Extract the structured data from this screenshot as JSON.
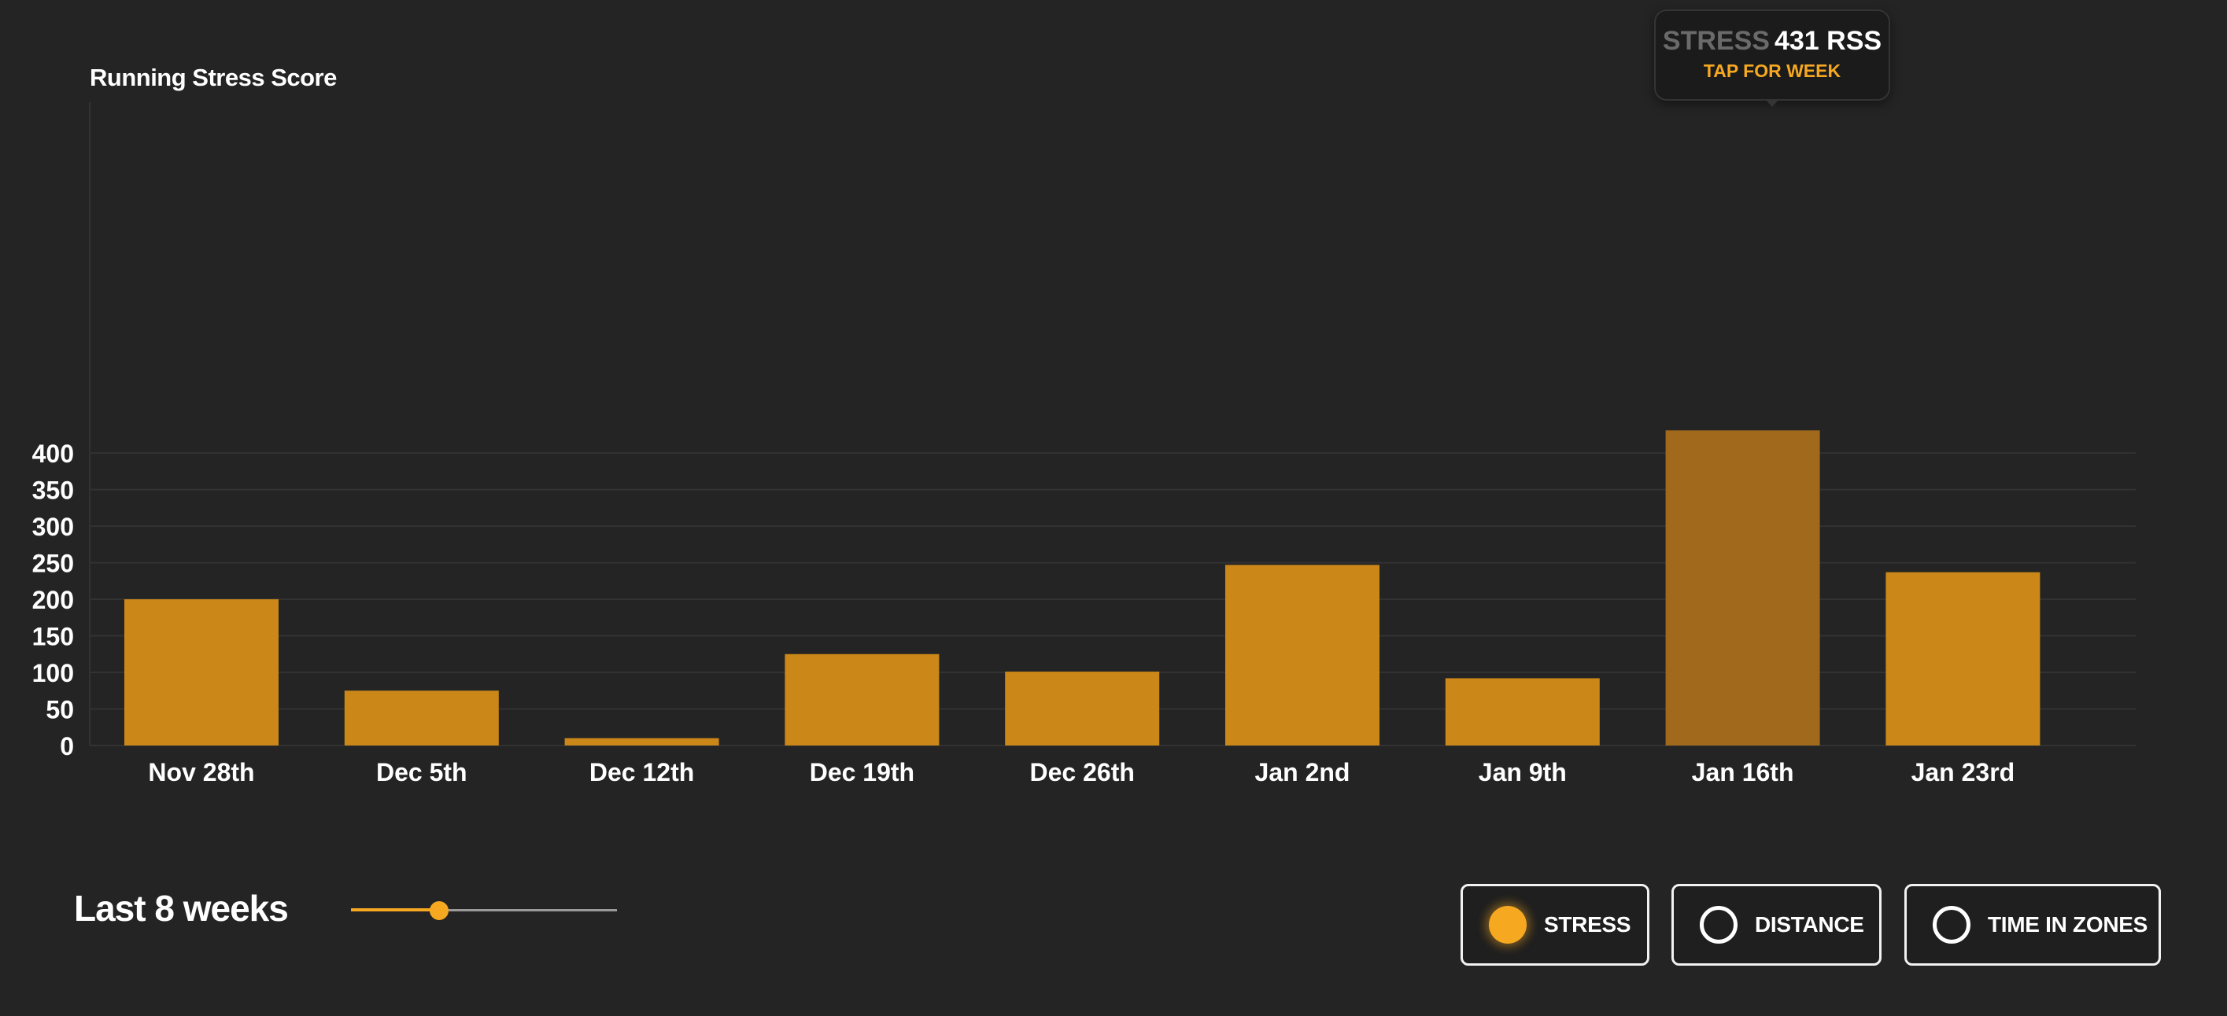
{
  "chart_data": {
    "type": "bar",
    "title": "Running Stress Score",
    "categories": [
      "Nov 28th",
      "Dec 5th",
      "Dec 12th",
      "Dec 19th",
      "Dec 26th",
      "Jan 2nd",
      "Jan 9th",
      "Jan 16th",
      "Jan 23rd"
    ],
    "values": [
      200,
      75,
      10,
      125,
      101,
      247,
      92,
      431,
      237
    ],
    "ylim": [
      0,
      440
    ],
    "yticks": [
      0,
      50,
      100,
      150,
      200,
      250,
      300,
      350,
      400
    ],
    "grid": true,
    "bar_color": "#cb8718",
    "highlight_color": "#a1691c",
    "highlight_index": 7
  },
  "tooltip": {
    "key": "STRESS",
    "value": "431 RSS",
    "action": "TAP FOR WEEK"
  },
  "controls": {
    "range_label": "Last 8 weeks",
    "slider_value": 0.33,
    "accent": "#f6a821",
    "toggles": [
      {
        "label": "STRESS",
        "selected": true
      },
      {
        "label": "DISTANCE",
        "selected": false
      },
      {
        "label": "TIME IN ZONES",
        "selected": false
      }
    ]
  }
}
